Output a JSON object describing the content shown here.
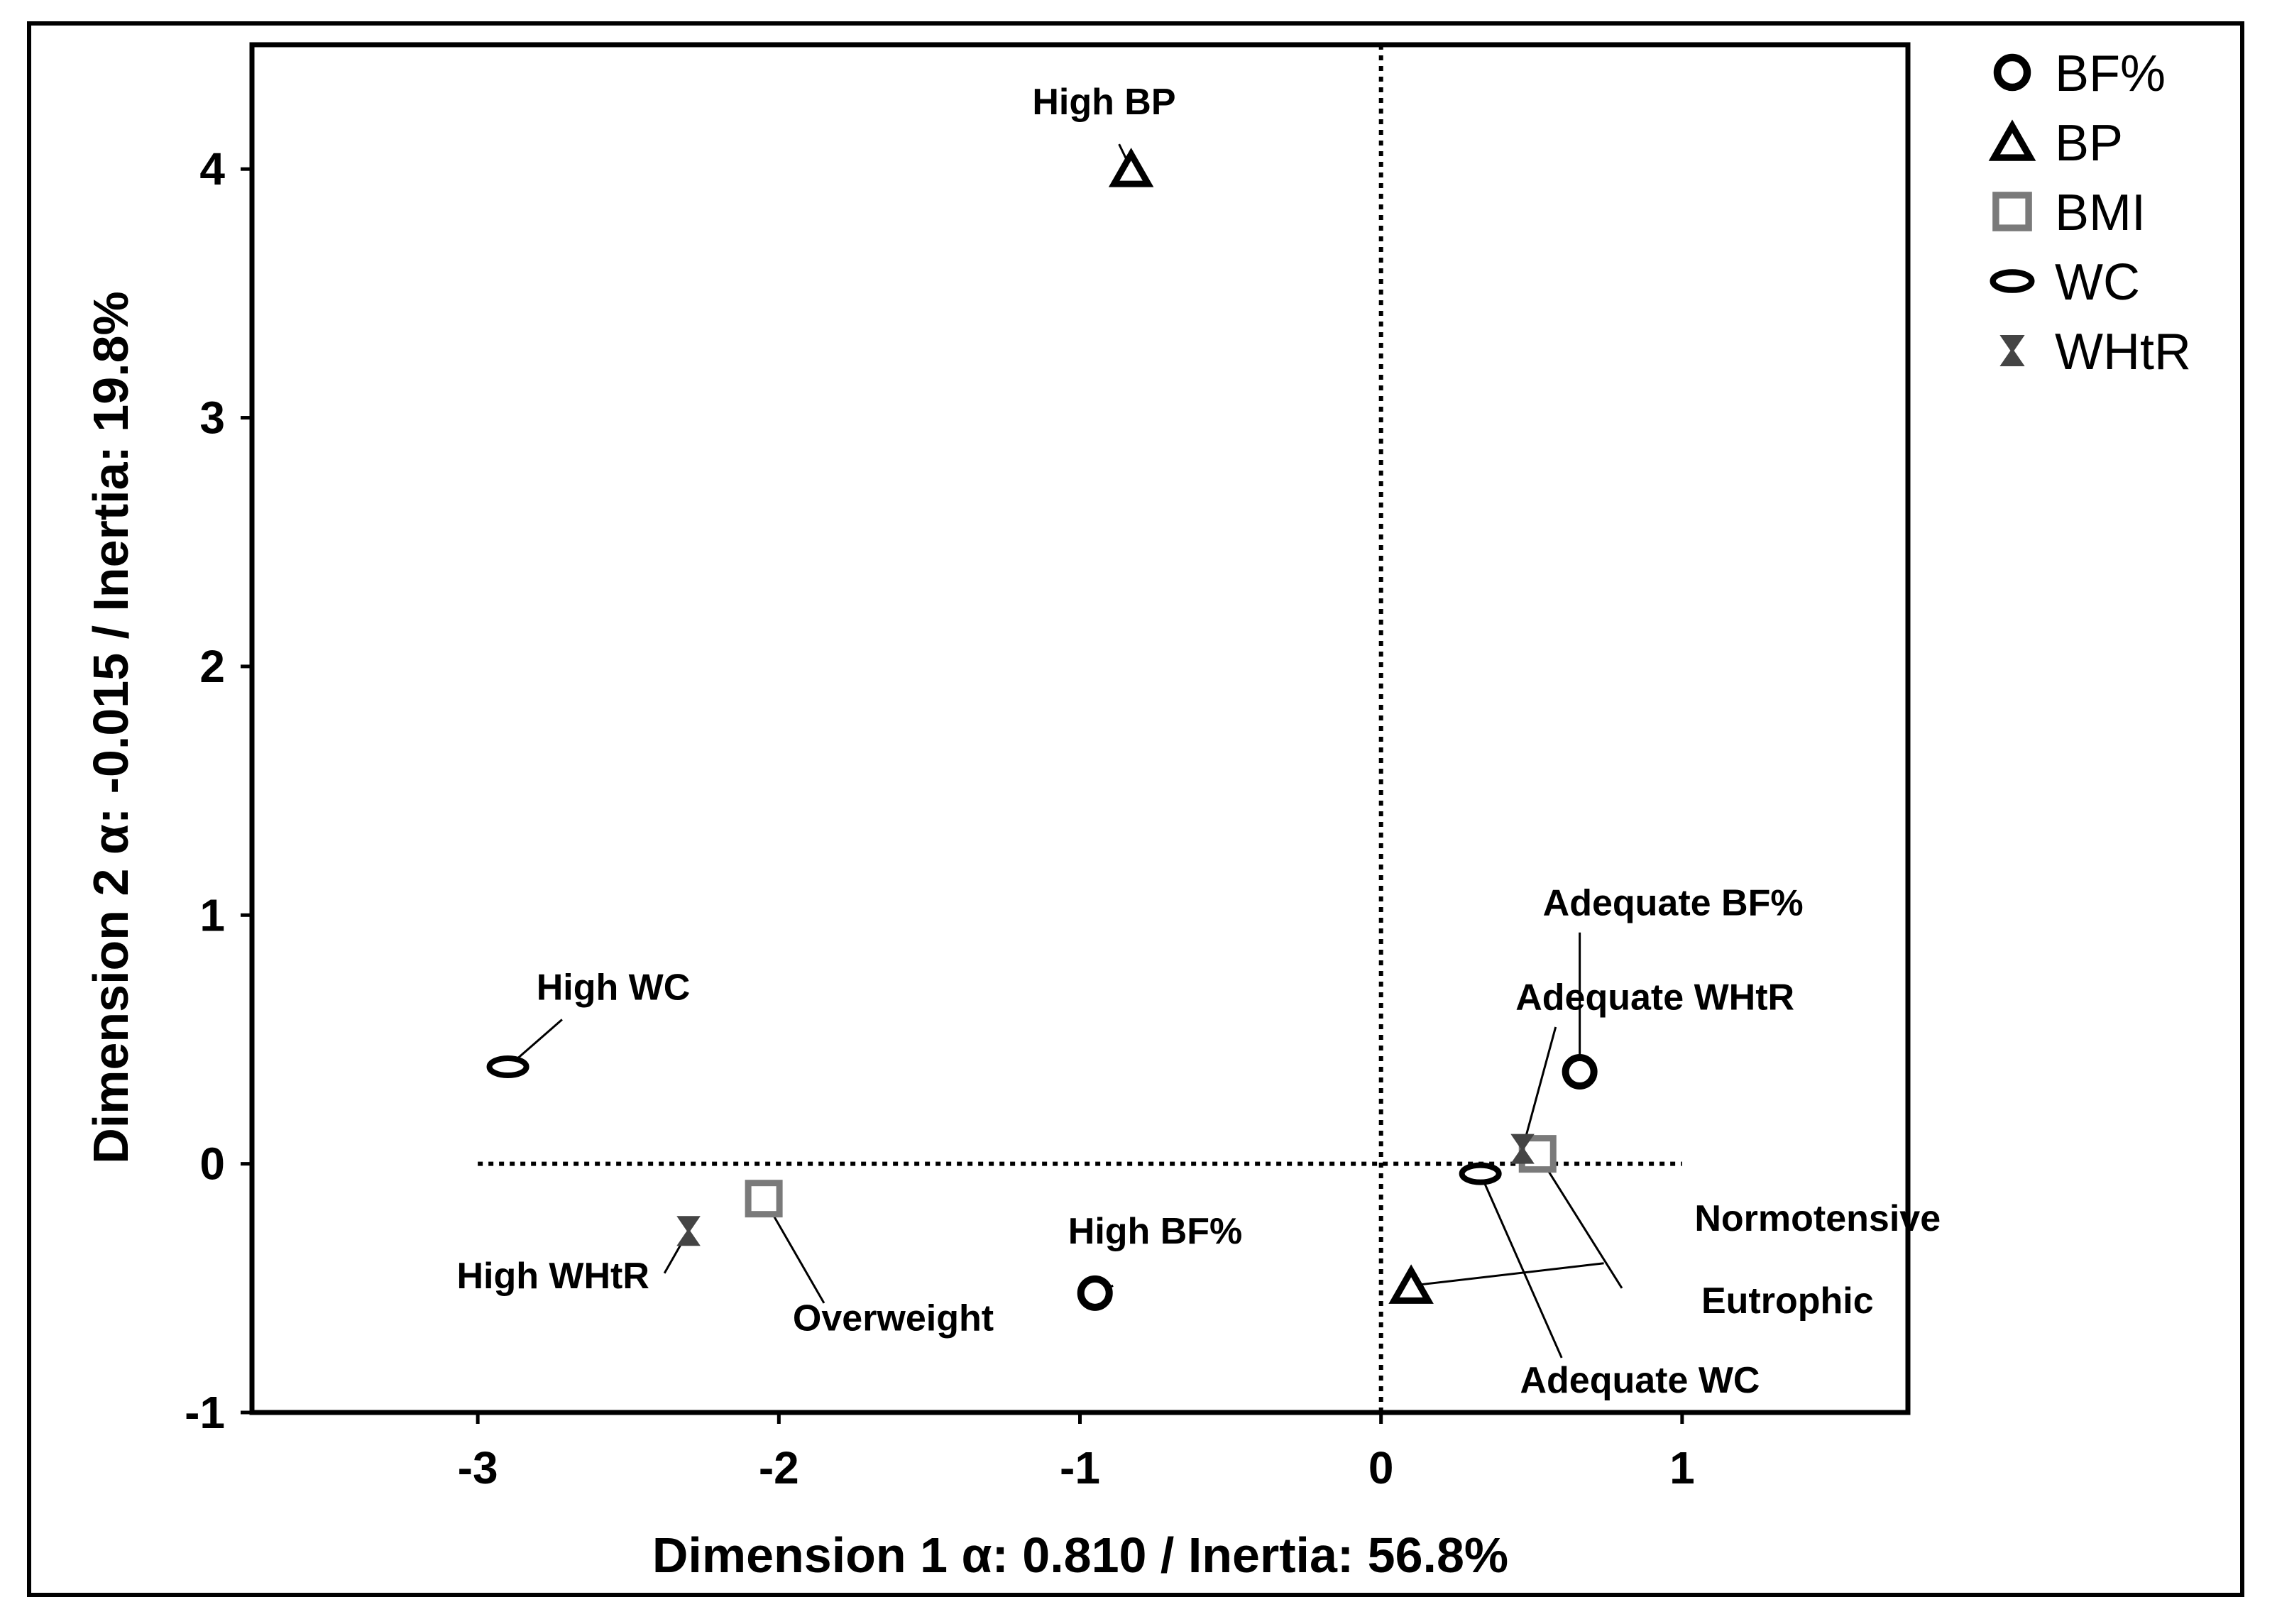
{
  "chart_data": {
    "type": "scatter",
    "xlabel": "Dimension 1 α: 0.810 / Inertia: 56.8%",
    "ylabel": "Dimension 2 α: -0.015 / Inertia: 19.8%",
    "xlim": [
      -3.75,
      1.75
    ],
    "ylim": [
      -1,
      4.5
    ],
    "xticks": [
      "-3",
      "-2",
      "-1",
      "0",
      "1"
    ],
    "yticks": [
      "-1",
      "0",
      "1",
      "2",
      "3",
      "4"
    ],
    "reference_lines": [
      {
        "orientation": "vertical",
        "value": 0,
        "style": "dotted"
      },
      {
        "orientation": "horizontal",
        "value": 0,
        "style": "dotted"
      }
    ],
    "legend_position": "outside-right",
    "series": [
      {
        "name": "BF%",
        "marker": "circle",
        "color": "#000000",
        "points": [
          {
            "label": "Adequate BF%",
            "x": 0.66,
            "y": 0.37
          },
          {
            "label": "High BF%",
            "x": -0.95,
            "y": -0.52
          }
        ]
      },
      {
        "name": "BP",
        "marker": "triangle",
        "color": "#000000",
        "points": [
          {
            "label": "High BP",
            "x": -0.83,
            "y": 4.0
          },
          {
            "label": "Normotensive",
            "x": 0.1,
            "y": -0.49
          }
        ]
      },
      {
        "name": "BMI",
        "marker": "square",
        "color": "#7a7a7a",
        "points": [
          {
            "label": "Overweight",
            "x": -2.05,
            "y": -0.14
          },
          {
            "label": "Eutrophic",
            "x": 0.52,
            "y": 0.04
          }
        ]
      },
      {
        "name": "WC",
        "marker": "ellipse",
        "color": "#000000",
        "points": [
          {
            "label": "High WC",
            "x": -2.9,
            "y": 0.39
          },
          {
            "label": "Adequate WC",
            "x": 0.33,
            "y": -0.04
          }
        ]
      },
      {
        "name": "WHtR",
        "marker": "hourglass",
        "color": "#444444",
        "points": [
          {
            "label": "High WHtR",
            "x": -2.3,
            "y": -0.27
          },
          {
            "label": "Adequate WHtR",
            "x": 0.47,
            "y": 0.06
          }
        ]
      }
    ]
  }
}
